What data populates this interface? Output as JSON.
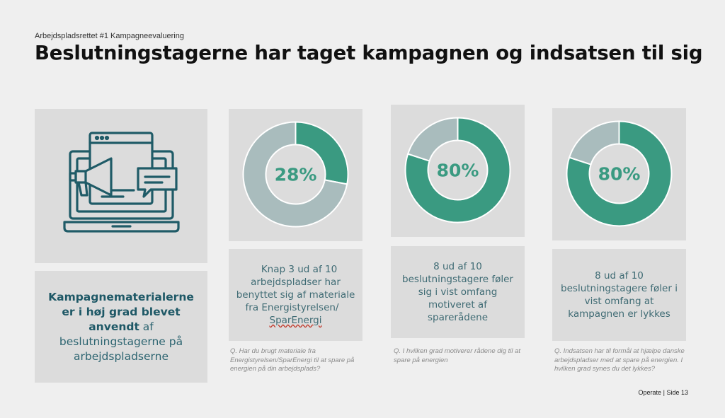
{
  "header": {
    "subtitle": "Arbejdspladsrettet #1 Kampagneevaluering",
    "title": "Beslutningstagerne har taget kampagnen og indsatsen til sig"
  },
  "left": {
    "icon": "laptop-megaphone-icon",
    "bold_text": "Kampagnematerialerne er i høj grad blevet anvendt",
    "normal_text": " af beslutningstagerne på arbejdspladserne"
  },
  "colors": {
    "accent": "#3a9a81",
    "rest": "#a9bcbd",
    "text": "#2c6470"
  },
  "chart_data": [
    {
      "type": "pie",
      "values": [
        28,
        72
      ],
      "center_label": "28%",
      "description": [
        "Knap 3 ud af 10 arbejdspladser har benyttet sig af materiale fra Energistyrelsen/",
        "SparEnergi"
      ],
      "question": "Q. Har du brugt materiale fra Energistyrelsen/SparEnergi til at spare på energien på din arbejdsplads?"
    },
    {
      "type": "pie",
      "values": [
        80,
        20
      ],
      "center_label": "80%",
      "description": [
        "8 ud af 10 beslutningstagere føler sig i vist omfang motiveret af sparerådene"
      ],
      "question": "Q. I hvilken grad motiverer rådene dig til at spare på energien"
    },
    {
      "type": "pie",
      "values": [
        80,
        20
      ],
      "center_label": "80%",
      "description": [
        "8 ud af 10 beslutningstagere føler i vist omfang at kampagnen er lykkes"
      ],
      "question": "Q. Indsatsen har til formål at hjælpe danske arbejdspladser med at spare på energien. I hvilken grad synes du det lykkes?"
    }
  ],
  "footer": {
    "brand": "Operate",
    "separator": "|",
    "page_label": "Side",
    "page_number": "13"
  }
}
